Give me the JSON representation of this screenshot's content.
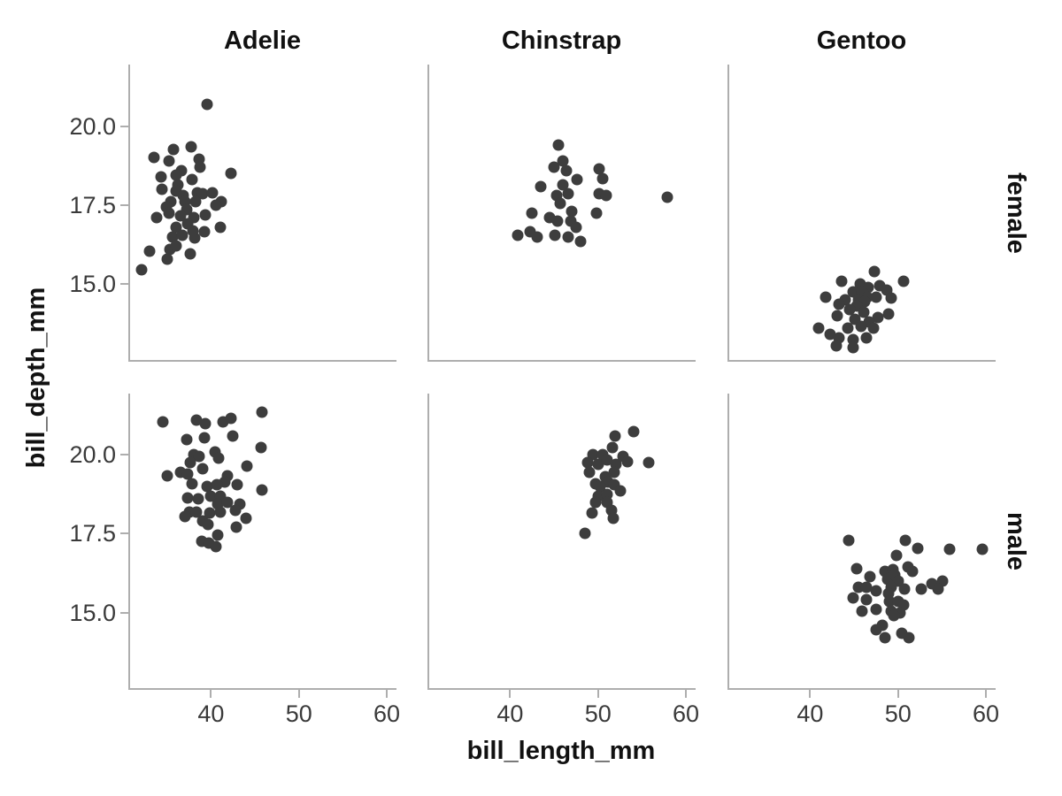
{
  "chart_data": {
    "type": "scatter",
    "title": "",
    "xlabel": "bill_length_mm",
    "ylabel": "bill_depth_mm",
    "facet": {
      "columns_variable": "species",
      "rows_variable": "sex"
    },
    "col_categories": [
      "Adelie",
      "Chinstrap",
      "Gentoo"
    ],
    "row_categories": [
      "female",
      "male"
    ],
    "x_domain": [
      30.8,
      61.1
    ],
    "y_domain": [
      12.6,
      21.95
    ],
    "x_ticks": {
      "values": [
        40,
        50,
        60
      ],
      "labels": [
        "40",
        "50",
        "60"
      ]
    },
    "y_ticks": {
      "values": [
        20.0,
        17.5,
        15.0
      ],
      "labels": [
        "20.0",
        "17.5",
        "15.0"
      ]
    },
    "grid": false,
    "legend": false,
    "colors": {
      "point": "#3d3d3d",
      "spine": "#aeaeae",
      "tick_label": "#3a3a3a",
      "text": "#111111",
      "background": "#ffffff"
    },
    "panels": [
      {
        "species": "Adelie",
        "sex": "female",
        "col": 0,
        "row": 0,
        "points": [
          [
            39.6,
            20.7
          ],
          [
            33.5,
            19.0
          ],
          [
            35.7,
            19.25
          ],
          [
            37.7,
            19.35
          ],
          [
            35.2,
            18.9
          ],
          [
            38.7,
            18.95
          ],
          [
            36.6,
            18.6
          ],
          [
            38.8,
            18.7
          ],
          [
            42.3,
            18.5
          ],
          [
            34.3,
            18.4
          ],
          [
            36.0,
            18.45
          ],
          [
            37.8,
            18.3
          ],
          [
            36.2,
            18.15
          ],
          [
            34.4,
            18.0
          ],
          [
            36.0,
            17.95
          ],
          [
            38.5,
            17.9
          ],
          [
            39.1,
            17.85
          ],
          [
            40.2,
            17.9
          ],
          [
            36.8,
            17.8
          ],
          [
            35.4,
            17.6
          ],
          [
            37.0,
            17.6
          ],
          [
            38.2,
            17.6
          ],
          [
            41.2,
            17.6
          ],
          [
            40.6,
            17.5
          ],
          [
            34.9,
            17.45
          ],
          [
            37.2,
            17.35
          ],
          [
            33.8,
            17.1
          ],
          [
            35.2,
            17.25
          ],
          [
            36.5,
            17.15
          ],
          [
            38.0,
            17.1
          ],
          [
            39.4,
            17.2
          ],
          [
            36.0,
            16.8
          ],
          [
            37.3,
            16.9
          ],
          [
            39.3,
            16.65
          ],
          [
            41.1,
            16.8
          ],
          [
            35.6,
            16.5
          ],
          [
            36.7,
            16.55
          ],
          [
            38.1,
            16.45
          ],
          [
            37.9,
            16.7
          ],
          [
            33.0,
            16.05
          ],
          [
            35.3,
            16.1
          ],
          [
            36.0,
            16.2
          ],
          [
            35.0,
            15.8
          ],
          [
            37.6,
            15.95
          ],
          [
            32.1,
            15.45
          ]
        ]
      },
      {
        "species": "Chinstrap",
        "sex": "female",
        "col": 1,
        "row": 0,
        "points": [
          [
            45.5,
            19.4
          ],
          [
            46.0,
            18.9
          ],
          [
            45.0,
            18.7
          ],
          [
            46.4,
            18.6
          ],
          [
            50.1,
            18.65
          ],
          [
            47.6,
            18.3
          ],
          [
            50.5,
            18.35
          ],
          [
            43.5,
            18.1
          ],
          [
            46.0,
            18.15
          ],
          [
            45.3,
            17.8
          ],
          [
            46.6,
            17.85
          ],
          [
            50.1,
            17.85
          ],
          [
            50.9,
            17.8
          ],
          [
            57.9,
            17.75
          ],
          [
            45.7,
            17.55
          ],
          [
            42.5,
            17.25
          ],
          [
            47.0,
            17.3
          ],
          [
            49.8,
            17.25
          ],
          [
            44.5,
            17.1
          ],
          [
            46.9,
            17.0
          ],
          [
            45.4,
            17.0
          ],
          [
            40.9,
            16.55
          ],
          [
            42.3,
            16.65
          ],
          [
            43.1,
            16.5
          ],
          [
            45.1,
            16.55
          ],
          [
            46.6,
            16.5
          ],
          [
            47.5,
            16.8
          ],
          [
            48.0,
            16.35
          ]
        ]
      },
      {
        "species": "Gentoo",
        "sex": "female",
        "col": 2,
        "row": 0,
        "points": [
          [
            47.3,
            15.4
          ],
          [
            50.6,
            15.1
          ],
          [
            43.6,
            15.1
          ],
          [
            45.7,
            15.0
          ],
          [
            46.6,
            14.9
          ],
          [
            47.9,
            14.95
          ],
          [
            48.7,
            14.8
          ],
          [
            44.9,
            14.75
          ],
          [
            45.9,
            14.75
          ],
          [
            41.8,
            14.6
          ],
          [
            47.5,
            14.6
          ],
          [
            49.2,
            14.55
          ],
          [
            46.5,
            14.6
          ],
          [
            44.0,
            14.5
          ],
          [
            45.5,
            14.5
          ],
          [
            46.2,
            14.45
          ],
          [
            43.3,
            14.35
          ],
          [
            45.3,
            14.3
          ],
          [
            44.5,
            14.2
          ],
          [
            46.1,
            14.1
          ],
          [
            48.9,
            14.05
          ],
          [
            43.1,
            14.0
          ],
          [
            47.7,
            13.95
          ],
          [
            45.1,
            13.9
          ],
          [
            46.7,
            13.8
          ],
          [
            45.8,
            13.65
          ],
          [
            41.0,
            13.6
          ],
          [
            44.3,
            13.6
          ],
          [
            47.2,
            13.6
          ],
          [
            42.3,
            13.4
          ],
          [
            43.3,
            13.3
          ],
          [
            44.9,
            13.25
          ],
          [
            46.4,
            13.3
          ],
          [
            43.0,
            13.05
          ],
          [
            44.9,
            13.0
          ]
        ]
      },
      {
        "species": "Adelie",
        "sex": "male",
        "col": 0,
        "row": 1,
        "points": [
          [
            45.8,
            21.35
          ],
          [
            34.5,
            21.05
          ],
          [
            38.4,
            21.1
          ],
          [
            39.4,
            21.0
          ],
          [
            41.4,
            21.05
          ],
          [
            42.3,
            21.15
          ],
          [
            37.2,
            20.5
          ],
          [
            39.3,
            20.55
          ],
          [
            42.5,
            20.6
          ],
          [
            45.7,
            20.25
          ],
          [
            38.0,
            20.0
          ],
          [
            38.7,
            19.95
          ],
          [
            40.5,
            20.1
          ],
          [
            40.9,
            19.9
          ],
          [
            37.6,
            19.75
          ],
          [
            44.1,
            19.65
          ],
          [
            35.0,
            19.35
          ],
          [
            36.5,
            19.45
          ],
          [
            37.3,
            19.4
          ],
          [
            39.1,
            19.55
          ],
          [
            41.9,
            19.35
          ],
          [
            37.8,
            19.1
          ],
          [
            41.6,
            19.15
          ],
          [
            39.6,
            19.0
          ],
          [
            40.7,
            19.05
          ],
          [
            43.0,
            19.05
          ],
          [
            45.8,
            18.9
          ],
          [
            37.3,
            18.65
          ],
          [
            38.6,
            18.6
          ],
          [
            40.0,
            18.7
          ],
          [
            41.1,
            18.7
          ],
          [
            40.8,
            18.45
          ],
          [
            41.9,
            18.5
          ],
          [
            43.3,
            18.45
          ],
          [
            37.5,
            18.2
          ],
          [
            38.3,
            18.2
          ],
          [
            39.9,
            18.15
          ],
          [
            41.1,
            18.2
          ],
          [
            42.8,
            18.25
          ],
          [
            37.0,
            18.05
          ],
          [
            39.1,
            17.9
          ],
          [
            39.7,
            17.8
          ],
          [
            44.0,
            18.0
          ],
          [
            42.9,
            17.7
          ],
          [
            40.8,
            17.45
          ],
          [
            39.0,
            17.25
          ],
          [
            39.8,
            17.2
          ],
          [
            40.6,
            17.1
          ]
        ]
      },
      {
        "species": "Chinstrap",
        "sex": "male",
        "col": 1,
        "row": 1,
        "points": [
          [
            54.1,
            20.75
          ],
          [
            51.9,
            20.6
          ],
          [
            51.6,
            20.25
          ],
          [
            52.8,
            19.95
          ],
          [
            53.3,
            19.8
          ],
          [
            55.8,
            19.75
          ],
          [
            49.4,
            20.0
          ],
          [
            50.5,
            20.0
          ],
          [
            48.8,
            19.75
          ],
          [
            50.0,
            19.7
          ],
          [
            51.0,
            19.85
          ],
          [
            52.0,
            19.7
          ],
          [
            49.0,
            19.45
          ],
          [
            51.8,
            19.45
          ],
          [
            50.8,
            19.3
          ],
          [
            49.7,
            19.1
          ],
          [
            51.1,
            19.15
          ],
          [
            51.8,
            19.05
          ],
          [
            52.5,
            18.85
          ],
          [
            50.2,
            19.0
          ],
          [
            50.0,
            18.7
          ],
          [
            51.0,
            18.75
          ],
          [
            49.7,
            18.5
          ],
          [
            51.0,
            18.5
          ],
          [
            49.3,
            18.15
          ],
          [
            51.5,
            18.25
          ],
          [
            51.7,
            18.0
          ],
          [
            48.5,
            17.5
          ]
        ]
      },
      {
        "species": "Gentoo",
        "sex": "male",
        "col": 2,
        "row": 1,
        "points": [
          [
            44.4,
            17.3
          ],
          [
            50.8,
            17.3
          ],
          [
            52.2,
            17.05
          ],
          [
            55.9,
            17.0
          ],
          [
            59.6,
            17.0
          ],
          [
            49.8,
            16.8
          ],
          [
            45.3,
            16.4
          ],
          [
            48.5,
            16.3
          ],
          [
            49.4,
            16.35
          ],
          [
            51.1,
            16.45
          ],
          [
            51.6,
            16.3
          ],
          [
            46.8,
            16.15
          ],
          [
            48.8,
            16.05
          ],
          [
            49.6,
            16.2
          ],
          [
            50.0,
            16.0
          ],
          [
            55.1,
            16.0
          ],
          [
            53.9,
            15.9
          ],
          [
            45.5,
            15.8
          ],
          [
            46.4,
            15.8
          ],
          [
            47.5,
            15.7
          ],
          [
            49.2,
            15.8
          ],
          [
            50.7,
            15.75
          ],
          [
            52.6,
            15.75
          ],
          [
            54.6,
            15.75
          ],
          [
            44.9,
            15.45
          ],
          [
            46.4,
            15.4
          ],
          [
            48.9,
            15.6
          ],
          [
            45.9,
            15.05
          ],
          [
            47.5,
            15.1
          ],
          [
            49.0,
            15.35
          ],
          [
            50.0,
            15.35
          ],
          [
            50.6,
            15.25
          ],
          [
            49.2,
            15.05
          ],
          [
            50.2,
            15.0
          ],
          [
            49.5,
            14.9
          ],
          [
            48.2,
            14.6
          ],
          [
            47.5,
            14.45
          ],
          [
            50.4,
            14.35
          ],
          [
            48.5,
            14.2
          ],
          [
            51.2,
            14.2
          ]
        ]
      }
    ]
  }
}
